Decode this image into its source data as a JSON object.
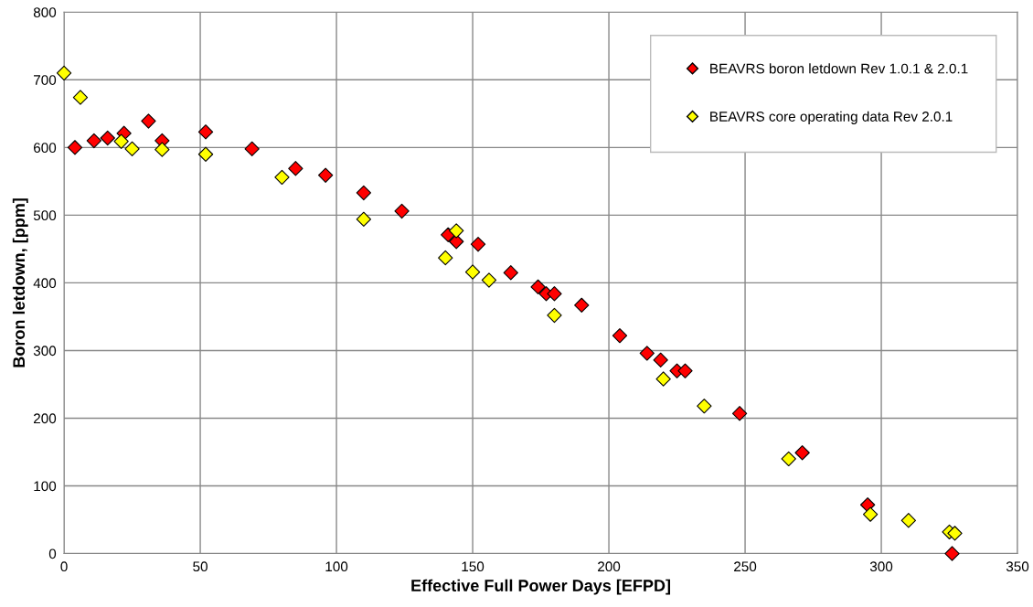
{
  "chart_data": {
    "type": "scatter",
    "xlabel": "Effective Full Power Days [EFPD]",
    "ylabel": "Boron letdown, [ppm]",
    "xlim": [
      0,
      350
    ],
    "xticks": [
      0,
      50,
      100,
      150,
      200,
      250,
      300,
      350
    ],
    "ylim": [
      0,
      800
    ],
    "yticks": [
      0,
      100,
      200,
      300,
      400,
      500,
      600,
      700,
      800
    ],
    "grid": true,
    "legend": "top right",
    "marker": "diamond",
    "series": [
      {
        "name": "BEAVRS boron letdown Rev 1.0.1 & 2.0.1",
        "color": "#ff0000",
        "x": [
          4,
          11,
          16,
          22,
          31,
          36,
          52,
          69,
          85,
          96,
          110,
          124,
          141,
          144,
          152,
          164,
          174,
          177,
          180,
          190,
          204,
          214,
          219,
          225,
          228,
          248,
          271,
          295,
          326
        ],
        "values": [
          600,
          610,
          614,
          621,
          639,
          610,
          623,
          598,
          569,
          559,
          533,
          506,
          471,
          461,
          457,
          415,
          394,
          384,
          384,
          367,
          322,
          296,
          286,
          270,
          270,
          207,
          149,
          72,
          0
        ]
      },
      {
        "name": "BEAVRS core operating data Rev 2.0.1",
        "color": "#ffff00",
        "x": [
          0,
          6,
          21,
          25,
          36,
          52,
          80,
          110,
          140,
          144,
          150,
          156,
          180,
          220,
          235,
          266,
          296,
          310,
          325,
          327
        ],
        "values": [
          710,
          674,
          609,
          598,
          597,
          590,
          556,
          494,
          437,
          477,
          416,
          404,
          352,
          258,
          218,
          140,
          58,
          49,
          32,
          30
        ]
      }
    ]
  }
}
